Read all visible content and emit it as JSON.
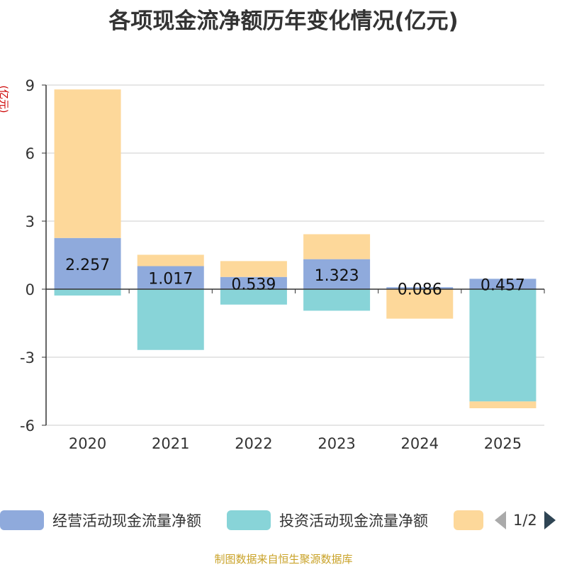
{
  "chart_data": {
    "type": "bar",
    "stacked": true,
    "title": "各项现金流净额历年变化情况(亿元)",
    "ylabel": "(亿元)",
    "categories": [
      "2020",
      "2021",
      "2022",
      "2023",
      "2024",
      "2025"
    ],
    "series": [
      {
        "name": "经营活动现金流量净额",
        "color": "#8faadc",
        "values": [
          2.257,
          1.017,
          0.539,
          1.323,
          0.086,
          0.457
        ]
      },
      {
        "name": "投资活动现金流量净额",
        "color": "#88d4d8",
        "values": [
          -0.28,
          -2.68,
          -0.68,
          -0.95,
          0.0,
          -4.95
        ]
      },
      {
        "name": "",
        "color": "#fdd89a",
        "values": [
          6.55,
          0.5,
          0.7,
          1.1,
          -1.3,
          -0.3
        ]
      }
    ],
    "data_labels": [
      "2.257",
      "1.017",
      "0.539",
      "1.323",
      "0.086",
      "0.457"
    ],
    "ylim": [
      -6,
      9
    ],
    "yticks": [
      -6,
      -3,
      0,
      3,
      6,
      9
    ],
    "grid": true,
    "legend_position": "bottom"
  },
  "legend": {
    "page": "1/2"
  },
  "source_note": "制图数据来自恒生聚源数据库"
}
